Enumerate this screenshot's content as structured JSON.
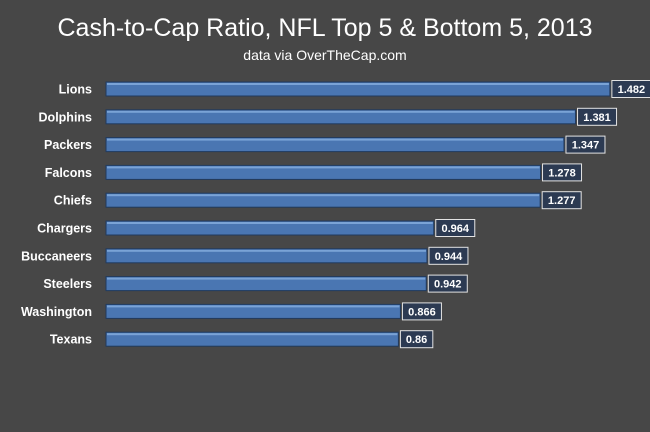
{
  "chart_data": {
    "type": "bar",
    "orientation": "horizontal",
    "title": "Cash-to-Cap Ratio, NFL Top 5 & Bottom 5, 2013",
    "subtitle": "data via OverTheCap.com",
    "categories": [
      "Lions",
      "Dolphins",
      "Packers",
      "Falcons",
      "Chiefs",
      "Chargers",
      "Buccaneers",
      "Steelers",
      "Washington",
      "Texans"
    ],
    "values": [
      1.482,
      1.381,
      1.347,
      1.278,
      1.277,
      0.964,
      0.944,
      0.942,
      0.866,
      0.86
    ],
    "data_labels": [
      "1.482",
      "1.381",
      "1.347",
      "1.278",
      "1.277",
      "0.964",
      "0.944",
      "0.942",
      "0.866",
      "0.86"
    ],
    "xlim": [
      0,
      1.6
    ],
    "grid": false,
    "legend": "none",
    "colors": {
      "background": "#474747",
      "bar": "#4a76b2",
      "label_box": "#2c3a52",
      "text": "#ffffff"
    }
  }
}
